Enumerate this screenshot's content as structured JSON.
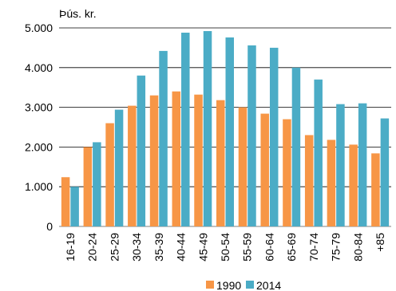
{
  "chart_data": {
    "type": "bar",
    "ylabel": "Þús. kr.",
    "xlabel": "",
    "title": "",
    "categories": [
      "16-19",
      "20-24",
      "25-29",
      "30-34",
      "35-39",
      "40-44",
      "45-49",
      "50-54",
      "55-59",
      "60-64",
      "65-69",
      "70-74",
      "75-79",
      "80-84",
      "+85"
    ],
    "series": [
      {
        "name": "1990",
        "color": "#f79646",
        "values": [
          1240,
          2000,
          2600,
          3040,
          3300,
          3400,
          3320,
          3180,
          3000,
          2840,
          2700,
          2300,
          2180,
          2060,
          1840
        ]
      },
      {
        "name": "2014",
        "color": "#4bacc6",
        "values": [
          1000,
          2120,
          2940,
          3800,
          4420,
          4880,
          4920,
          4760,
          4560,
          4500,
          4000,
          3700,
          3080,
          3100,
          2720
        ]
      }
    ],
    "ylim": [
      0,
      5000
    ],
    "yticks": [
      0,
      1000,
      2000,
      3000,
      4000,
      5000
    ],
    "yticklabels": [
      "0",
      "1.000",
      "2.000",
      "3.000",
      "4.000",
      "5.000"
    ],
    "grid": true,
    "legend": "bottom-center"
  }
}
